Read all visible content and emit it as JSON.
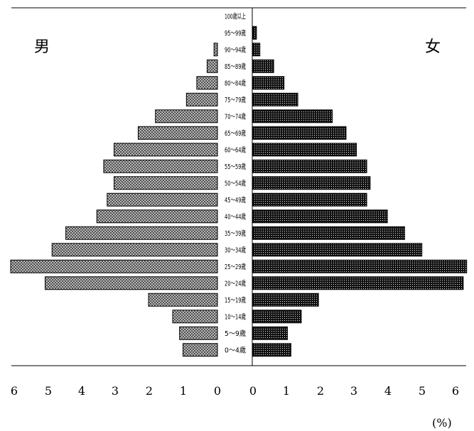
{
  "chart_data": {
    "type": "bar",
    "subtype": "population-pyramid",
    "left_label": "男",
    "right_label": "女",
    "unit": "(%)",
    "x_ticks_left": [
      "6",
      "5",
      "4",
      "3",
      "2",
      "1",
      "0"
    ],
    "x_ticks_right": [
      "0",
      "1",
      "2",
      "3",
      "4",
      "5",
      "6"
    ],
    "xlim": [
      0,
      6
    ],
    "categories": [
      "100歳以上",
      "95～99歳",
      "90～94歳",
      "85～89歳",
      "80～84歳",
      "75～79歳",
      "70～74歳",
      "65～69歳",
      "60～64歳",
      "55～59歳",
      "50～54歳",
      "45～49歳",
      "40～44歳",
      "35～39歳",
      "30～34歳",
      "25～29歳",
      "20～24歳",
      "15～19歳",
      "10～14歳",
      "5～9歳",
      "0～4歳"
    ],
    "series": [
      {
        "name": "男",
        "side": "left",
        "color": "#9a9a9a",
        "values": [
          0.0,
          0.0,
          0.1,
          0.3,
          0.6,
          0.9,
          1.8,
          2.3,
          3.0,
          3.3,
          3.0,
          3.2,
          3.5,
          4.4,
          4.8,
          6.0,
          5.0,
          2.0,
          1.3,
          1.1,
          1.0
        ]
      },
      {
        "name": "女",
        "side": "right",
        "color": "#111111",
        "values": [
          0.0,
          0.1,
          0.2,
          0.6,
          0.9,
          1.3,
          2.3,
          2.7,
          3.0,
          3.3,
          3.4,
          3.3,
          3.9,
          4.4,
          4.9,
          6.2,
          6.1,
          1.9,
          1.4,
          1.0,
          1.1
        ]
      }
    ],
    "grid": false,
    "legend": "none"
  }
}
